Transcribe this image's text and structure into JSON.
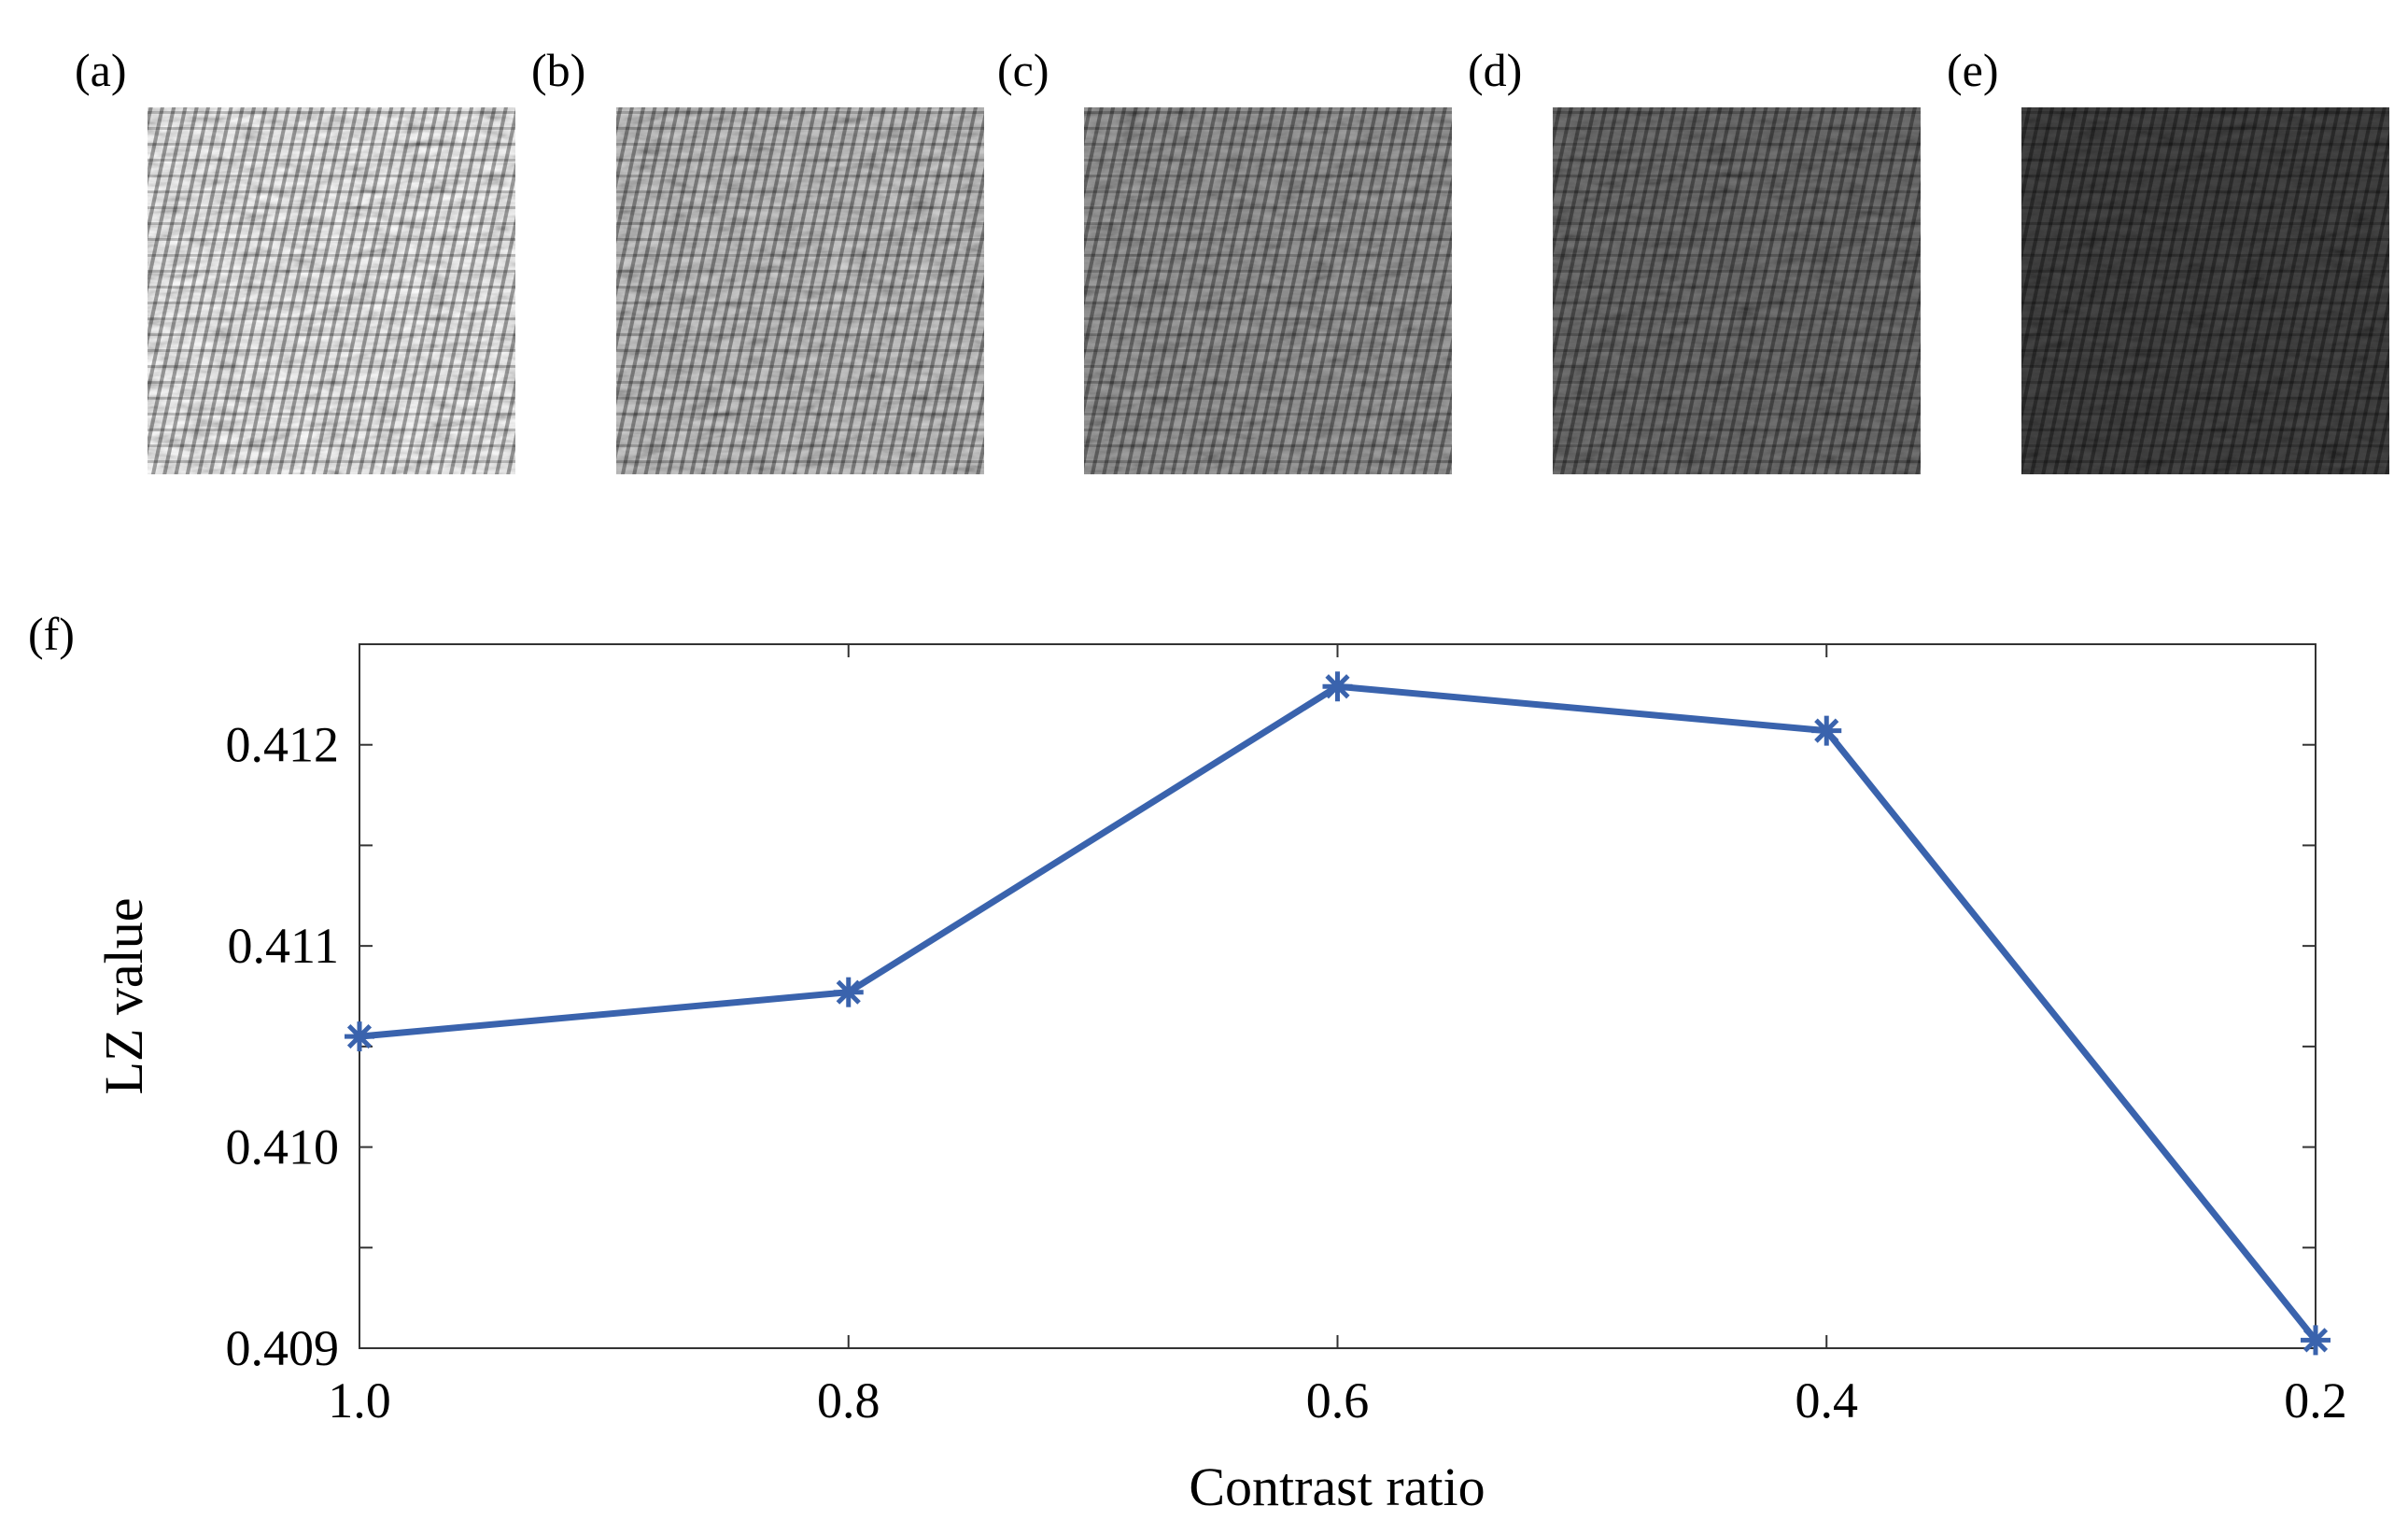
{
  "panels": [
    {
      "label": "(a)",
      "contrast": 1.0
    },
    {
      "label": "(b)",
      "contrast": 0.8
    },
    {
      "label": "(c)",
      "contrast": 0.6
    },
    {
      "label": "(d)",
      "contrast": 0.4
    },
    {
      "label": "(e)",
      "contrast": 0.2
    }
  ],
  "chart_panel_label": "(f)",
  "chart_data": {
    "type": "line",
    "title": "",
    "xlabel": "Contrast ratio",
    "ylabel": "LZ value",
    "x": [
      1.0,
      0.8,
      0.6,
      0.4,
      0.2
    ],
    "x_tick_labels": [
      "1.0",
      "0.8",
      "0.6",
      "0.4",
      "0.2"
    ],
    "y_ticks": [
      0.409,
      0.4095,
      0.41,
      0.4105,
      0.411,
      0.4115,
      0.412
    ],
    "y_tick_labels": [
      "0.409",
      "0.410",
      "0.411",
      "0.412"
    ],
    "y_labeled_ticks": [
      0.409,
      0.41,
      0.411,
      0.412
    ],
    "xlim": [
      1.0,
      0.2
    ],
    "ylim": [
      0.409,
      0.4125
    ],
    "grid": false,
    "series": [
      {
        "name": "LZ value",
        "color": "#3a63ad",
        "marker": "asterisk",
        "values": [
          0.41055,
          0.41077,
          0.41229,
          0.41207,
          0.40904
        ]
      }
    ]
  }
}
